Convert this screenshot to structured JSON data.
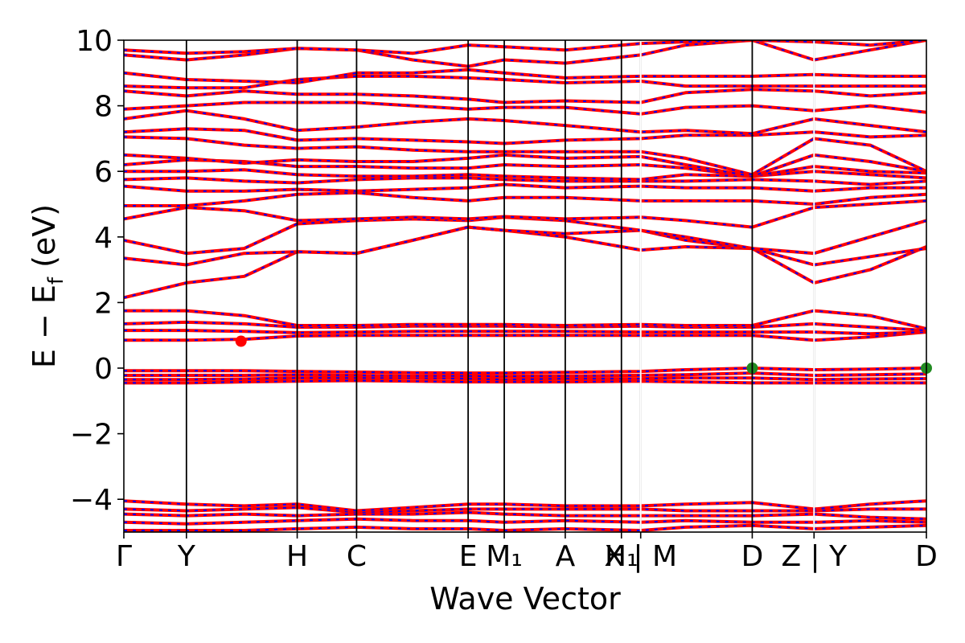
{
  "chart_data": {
    "type": "line",
    "title": "",
    "xlabel": "Wave Vector",
    "ylabel": "E − E",
    "ylabel_sub": "f",
    "ylabel_unit": " (eV)",
    "ylim": [
      -5,
      10
    ],
    "yticks": [
      -4,
      -2,
      0,
      2,
      4,
      6,
      8,
      10
    ],
    "ytick_labels": [
      "−4",
      "−2",
      "0",
      "2",
      "4",
      "6",
      "8",
      "10"
    ],
    "kpath": [
      {
        "label": "Γ",
        "k": 0.0
      },
      {
        "label": "Y",
        "k": 0.078
      },
      {
        "label": "H",
        "k": 0.216
      },
      {
        "label": "C",
        "k": 0.29
      },
      {
        "label": "E",
        "k": 0.429
      },
      {
        "label": "M₁",
        "k": 0.474
      },
      {
        "label": "A",
        "k": 0.55
      },
      {
        "label": "H₁",
        "k": 0.62
      },
      {
        "label": "X | M",
        "k": 0.644
      },
      {
        "label": "D",
        "k": 0.783
      },
      {
        "label": "Z | Y",
        "k": 0.86
      },
      {
        "label": "D",
        "k": 1.0
      }
    ],
    "xlim": [
      0,
      1.0
    ],
    "segment_breaks": [
      0.644,
      0.86
    ],
    "grid": false,
    "legend": "none",
    "series_colors": {
      "band_primary": "#ff0000",
      "band_overlay": "#0000ff"
    },
    "bands": [
      {
        "k": [
          0,
          0.078,
          0.15,
          0.216,
          0.29,
          0.36,
          0.429,
          0.474,
          0.55,
          0.644,
          0.7,
          0.783,
          0.86,
          0.93,
          1.0
        ],
        "E": [
          -4.95,
          -4.95,
          -4.95,
          -4.9,
          -4.85,
          -4.9,
          -4.9,
          -4.95,
          -4.9,
          -4.95,
          -4.85,
          -4.8,
          -4.9,
          -4.85,
          -4.8
        ]
      },
      {
        "k": [
          0,
          0.078,
          0.15,
          0.216,
          0.29,
          0.36,
          0.429,
          0.474,
          0.55,
          0.644,
          0.7,
          0.783,
          0.86,
          0.93,
          1.0
        ],
        "E": [
          -4.7,
          -4.75,
          -4.7,
          -4.65,
          -4.6,
          -4.65,
          -4.65,
          -4.7,
          -4.65,
          -4.7,
          -4.65,
          -4.7,
          -4.7,
          -4.65,
          -4.7
        ]
      },
      {
        "k": [
          0,
          0.078,
          0.15,
          0.216,
          0.29,
          0.36,
          0.429,
          0.474,
          0.55,
          0.644,
          0.7,
          0.783,
          0.86,
          0.93,
          1.0
        ],
        "E": [
          -4.45,
          -4.5,
          -4.45,
          -4.5,
          -4.45,
          -4.45,
          -4.4,
          -4.45,
          -4.5,
          -4.5,
          -4.5,
          -4.5,
          -4.45,
          -4.55,
          -4.6
        ]
      },
      {
        "k": [
          0,
          0.078,
          0.15,
          0.216,
          0.29,
          0.36,
          0.429,
          0.474,
          0.55,
          0.644,
          0.7,
          0.783,
          0.86,
          0.93,
          1.0
        ],
        "E": [
          -4.3,
          -4.35,
          -4.3,
          -4.25,
          -4.4,
          -4.35,
          -4.3,
          -4.3,
          -4.3,
          -4.3,
          -4.35,
          -4.35,
          -4.35,
          -4.3,
          -4.3
        ]
      },
      {
        "k": [
          0,
          0.078,
          0.15,
          0.216,
          0.29,
          0.36,
          0.429,
          0.474,
          0.55,
          0.644,
          0.7,
          0.783,
          0.86,
          0.93,
          1.0
        ],
        "E": [
          -4.05,
          -4.15,
          -4.2,
          -4.15,
          -4.35,
          -4.25,
          -4.15,
          -4.15,
          -4.2,
          -4.2,
          -4.15,
          -4.1,
          -4.3,
          -4.15,
          -4.05
        ]
      },
      {
        "k": [
          0,
          0.078,
          0.15,
          0.216,
          0.29,
          0.36,
          0.429,
          0.474,
          0.55,
          0.644,
          0.7,
          0.783,
          0.86,
          0.93,
          1.0
        ],
        "E": [
          -0.45,
          -0.45,
          -0.42,
          -0.4,
          -0.38,
          -0.4,
          -0.42,
          -0.42,
          -0.42,
          -0.4,
          -0.42,
          -0.45,
          -0.45,
          -0.45,
          -0.45
        ]
      },
      {
        "k": [
          0,
          0.078,
          0.15,
          0.216,
          0.29,
          0.36,
          0.429,
          0.474,
          0.55,
          0.644,
          0.7,
          0.783,
          0.86,
          0.93,
          1.0
        ],
        "E": [
          -0.35,
          -0.35,
          -0.33,
          -0.3,
          -0.3,
          -0.3,
          -0.32,
          -0.35,
          -0.32,
          -0.32,
          -0.3,
          -0.3,
          -0.35,
          -0.33,
          -0.32
        ]
      },
      {
        "k": [
          0,
          0.078,
          0.15,
          0.216,
          0.29,
          0.36,
          0.429,
          0.474,
          0.55,
          0.644,
          0.7,
          0.783,
          0.86,
          0.93,
          1.0
        ],
        "E": [
          -0.22,
          -0.22,
          -0.22,
          -0.2,
          -0.22,
          -0.24,
          -0.24,
          -0.25,
          -0.24,
          -0.22,
          -0.2,
          -0.15,
          -0.22,
          -0.2,
          -0.18
        ]
      },
      {
        "k": [
          0,
          0.078,
          0.15,
          0.216,
          0.29,
          0.36,
          0.429,
          0.474,
          0.55,
          0.644,
          0.7,
          0.783,
          0.86,
          0.93,
          1.0
        ],
        "E": [
          -0.08,
          -0.08,
          -0.08,
          -0.1,
          -0.12,
          -0.14,
          -0.15,
          -0.15,
          -0.13,
          -0.1,
          -0.05,
          0.0,
          -0.05,
          -0.03,
          0.0
        ]
      },
      {
        "k": [
          0,
          0.078,
          0.15,
          0.216,
          0.29,
          0.36,
          0.429,
          0.474,
          0.55,
          0.644,
          0.7,
          0.783,
          0.86,
          0.93,
          1.0
        ],
        "E": [
          0.85,
          0.85,
          0.88,
          0.98,
          1.0,
          1.0,
          1.0,
          1.0,
          1.0,
          1.0,
          1.0,
          1.0,
          0.85,
          0.95,
          1.1
        ]
      },
      {
        "k": [
          0,
          0.078,
          0.15,
          0.216,
          0.29,
          0.36,
          0.429,
          0.474,
          0.55,
          0.644,
          0.7,
          0.783,
          0.86,
          0.93,
          1.0
        ],
        "E": [
          1.15,
          1.15,
          1.12,
          1.08,
          1.1,
          1.12,
          1.12,
          1.12,
          1.12,
          1.1,
          1.1,
          1.1,
          1.1,
          1.05,
          1.1
        ]
      },
      {
        "k": [
          0,
          0.078,
          0.15,
          0.216,
          0.29,
          0.36,
          0.429,
          0.474,
          0.55,
          0.644,
          0.7,
          0.783,
          0.86,
          0.93,
          1.0
        ],
        "E": [
          1.35,
          1.4,
          1.35,
          1.25,
          1.25,
          1.28,
          1.28,
          1.28,
          1.26,
          1.28,
          1.25,
          1.25,
          1.35,
          1.25,
          1.15
        ]
      },
      {
        "k": [
          0,
          0.078,
          0.15,
          0.216,
          0.29,
          0.36,
          0.429,
          0.474,
          0.55,
          0.644,
          0.7,
          0.783,
          0.86,
          0.93,
          1.0
        ],
        "E": [
          1.75,
          1.75,
          1.6,
          1.3,
          1.3,
          1.33,
          1.33,
          1.33,
          1.3,
          1.33,
          1.3,
          1.3,
          1.75,
          1.6,
          1.2
        ]
      },
      {
        "k": [
          0,
          0.078,
          0.15,
          0.216,
          0.29,
          0.36,
          0.429,
          0.474,
          0.55,
          0.644,
          0.7,
          0.783,
          0.86,
          0.93,
          1.0
        ],
        "E": [
          2.15,
          2.6,
          2.8,
          3.55,
          3.5,
          3.9,
          4.3,
          4.2,
          4.0,
          3.6,
          3.7,
          3.65,
          2.6,
          3.0,
          3.7
        ]
      },
      {
        "k": [
          0,
          0.078,
          0.15,
          0.216,
          0.29,
          0.36,
          0.429,
          0.474,
          0.55,
          0.644,
          0.7,
          0.783,
          0.86,
          0.93,
          1.0
        ],
        "E": [
          3.35,
          3.15,
          3.5,
          3.55,
          3.5,
          3.9,
          4.3,
          4.2,
          4.1,
          4.2,
          3.9,
          3.65,
          3.15,
          3.4,
          3.65
        ]
      },
      {
        "k": [
          0,
          0.078,
          0.15,
          0.216,
          0.29,
          0.36,
          0.429,
          0.474,
          0.55,
          0.644,
          0.7,
          0.783,
          0.86,
          0.93,
          1.0
        ],
        "E": [
          3.9,
          3.5,
          3.65,
          4.4,
          4.5,
          4.55,
          4.5,
          4.6,
          4.5,
          4.2,
          4.0,
          3.65,
          3.5,
          4.0,
          4.5
        ]
      },
      {
        "k": [
          0,
          0.078,
          0.15,
          0.216,
          0.29,
          0.36,
          0.429,
          0.474,
          0.55,
          0.644,
          0.7,
          0.783,
          0.86,
          0.93,
          1.0
        ],
        "E": [
          4.55,
          4.9,
          4.8,
          4.5,
          4.55,
          4.6,
          4.55,
          4.62,
          4.55,
          4.6,
          4.5,
          4.3,
          4.9,
          5.0,
          5.1
        ]
      },
      {
        "k": [
          0,
          0.078,
          0.15,
          0.216,
          0.29,
          0.36,
          0.429,
          0.474,
          0.55,
          0.644,
          0.7,
          0.783,
          0.86,
          0.93,
          1.0
        ],
        "E": [
          4.95,
          4.95,
          5.1,
          5.3,
          5.35,
          5.2,
          5.1,
          5.2,
          5.2,
          5.1,
          5.1,
          5.1,
          5.0,
          5.2,
          5.3
        ]
      },
      {
        "k": [
          0,
          0.078,
          0.15,
          0.216,
          0.29,
          0.36,
          0.429,
          0.474,
          0.55,
          0.644,
          0.7,
          0.783,
          0.86,
          0.93,
          1.0
        ],
        "E": [
          5.55,
          5.4,
          5.4,
          5.45,
          5.4,
          5.45,
          5.5,
          5.6,
          5.5,
          5.55,
          5.5,
          5.5,
          5.4,
          5.5,
          5.5
        ]
      },
      {
        "k": [
          0,
          0.078,
          0.15,
          0.216,
          0.29,
          0.36,
          0.429,
          0.474,
          0.55,
          0.644,
          0.7,
          0.783,
          0.86,
          0.93,
          1.0
        ],
        "E": [
          5.75,
          5.8,
          5.7,
          5.65,
          5.75,
          5.8,
          5.8,
          5.75,
          5.7,
          5.7,
          5.7,
          5.75,
          5.7,
          5.6,
          5.7
        ]
      },
      {
        "k": [
          0,
          0.078,
          0.15,
          0.216,
          0.29,
          0.36,
          0.429,
          0.474,
          0.55,
          0.644,
          0.7,
          0.783,
          0.86,
          0.93,
          1.0
        ],
        "E": [
          6.0,
          6.0,
          6.05,
          5.9,
          5.85,
          5.85,
          5.9,
          5.85,
          5.8,
          5.75,
          5.9,
          5.85,
          6.0,
          5.9,
          5.8
        ]
      },
      {
        "k": [
          0,
          0.078,
          0.15,
          0.216,
          0.29,
          0.36,
          0.429,
          0.474,
          0.55,
          0.644,
          0.7,
          0.783,
          0.86,
          0.93,
          1.0
        ],
        "E": [
          6.2,
          6.35,
          6.3,
          6.15,
          6.15,
          6.1,
          6.1,
          6.2,
          6.15,
          6.2,
          6.1,
          5.85,
          6.15,
          6.0,
          5.95
        ]
      },
      {
        "k": [
          0,
          0.078,
          0.15,
          0.216,
          0.29,
          0.36,
          0.429,
          0.474,
          0.55,
          0.644,
          0.7,
          0.783,
          0.86,
          0.93,
          1.0
        ],
        "E": [
          6.5,
          6.4,
          6.25,
          6.35,
          6.3,
          6.3,
          6.4,
          6.5,
          6.4,
          6.45,
          6.2,
          5.85,
          6.5,
          6.3,
          6.0
        ]
      },
      {
        "k": [
          0,
          0.078,
          0.15,
          0.216,
          0.29,
          0.36,
          0.429,
          0.474,
          0.55,
          0.644,
          0.7,
          0.783,
          0.86,
          0.93,
          1.0
        ],
        "E": [
          7.05,
          7.0,
          6.8,
          6.7,
          6.75,
          6.65,
          6.6,
          6.6,
          6.6,
          6.6,
          6.4,
          5.9,
          7.0,
          6.8,
          6.0
        ]
      },
      {
        "k": [
          0,
          0.078,
          0.15,
          0.216,
          0.29,
          0.36,
          0.429,
          0.474,
          0.55,
          0.644,
          0.7,
          0.783,
          0.86,
          0.93,
          1.0
        ],
        "E": [
          7.2,
          7.3,
          7.25,
          6.95,
          7.0,
          6.95,
          6.9,
          6.85,
          6.95,
          7.0,
          7.1,
          7.1,
          7.2,
          7.05,
          7.1
        ]
      },
      {
        "k": [
          0,
          0.078,
          0.15,
          0.216,
          0.29,
          0.36,
          0.429,
          0.474,
          0.55,
          0.644,
          0.7,
          0.783,
          0.86,
          0.93,
          1.0
        ],
        "E": [
          7.6,
          7.85,
          7.6,
          7.25,
          7.35,
          7.5,
          7.6,
          7.55,
          7.4,
          7.2,
          7.25,
          7.15,
          7.6,
          7.4,
          7.2
        ]
      },
      {
        "k": [
          0,
          0.078,
          0.15,
          0.216,
          0.29,
          0.36,
          0.429,
          0.474,
          0.55,
          0.644,
          0.7,
          0.783,
          0.86,
          0.93,
          1.0
        ],
        "E": [
          7.9,
          8.0,
          8.1,
          8.1,
          8.1,
          8.0,
          7.9,
          7.95,
          7.95,
          7.75,
          7.95,
          8.0,
          7.85,
          8.0,
          7.8
        ]
      },
      {
        "k": [
          0,
          0.078,
          0.15,
          0.216,
          0.29,
          0.36,
          0.429,
          0.474,
          0.55,
          0.644,
          0.7,
          0.783,
          0.86,
          0.93,
          1.0
        ],
        "E": [
          8.45,
          8.3,
          8.45,
          8.35,
          8.35,
          8.3,
          8.2,
          8.1,
          8.15,
          8.1,
          8.4,
          8.5,
          8.45,
          8.3,
          8.4
        ]
      },
      {
        "k": [
          0,
          0.078,
          0.15,
          0.216,
          0.29,
          0.36,
          0.429,
          0.474,
          0.55,
          0.644,
          0.7,
          0.783,
          0.86,
          0.93,
          1.0
        ],
        "E": [
          8.6,
          8.55,
          8.55,
          8.8,
          8.9,
          8.9,
          8.85,
          8.8,
          8.7,
          8.75,
          8.6,
          8.6,
          8.6,
          8.6,
          8.6
        ]
      },
      {
        "k": [
          0,
          0.078,
          0.15,
          0.216,
          0.29,
          0.36,
          0.429,
          0.474,
          0.55,
          0.644,
          0.7,
          0.783,
          0.86,
          0.93,
          1.0
        ],
        "E": [
          9.0,
          8.8,
          8.75,
          8.7,
          9.0,
          9.0,
          9.1,
          9.0,
          8.85,
          8.9,
          8.9,
          8.9,
          8.95,
          8.9,
          8.9
        ]
      },
      {
        "k": [
          0,
          0.078,
          0.15,
          0.216,
          0.29,
          0.36,
          0.429,
          0.474,
          0.55,
          0.644,
          0.7,
          0.783,
          0.86,
          0.93,
          1.0
        ],
        "E": [
          9.55,
          9.4,
          9.55,
          9.75,
          9.7,
          9.4,
          9.2,
          9.4,
          9.3,
          9.55,
          9.85,
          10.0,
          9.4,
          9.7,
          10.0
        ]
      },
      {
        "k": [
          0,
          0.078,
          0.15,
          0.216,
          0.29,
          0.36,
          0.429,
          0.474,
          0.55,
          0.644,
          0.7,
          0.783,
          0.86,
          0.93,
          1.0
        ],
        "E": [
          9.7,
          9.6,
          9.65,
          9.75,
          9.7,
          9.6,
          9.85,
          9.8,
          9.7,
          9.9,
          9.95,
          10.0,
          9.95,
          9.85,
          10.0
        ]
      }
    ],
    "markers": [
      {
        "k": 0.146,
        "E": 0.82,
        "color": "#ff0000"
      },
      {
        "k": 0.783,
        "E": 0.0,
        "color": "#228b22"
      },
      {
        "k": 1.0,
        "E": 0.0,
        "color": "#228b22"
      }
    ]
  }
}
